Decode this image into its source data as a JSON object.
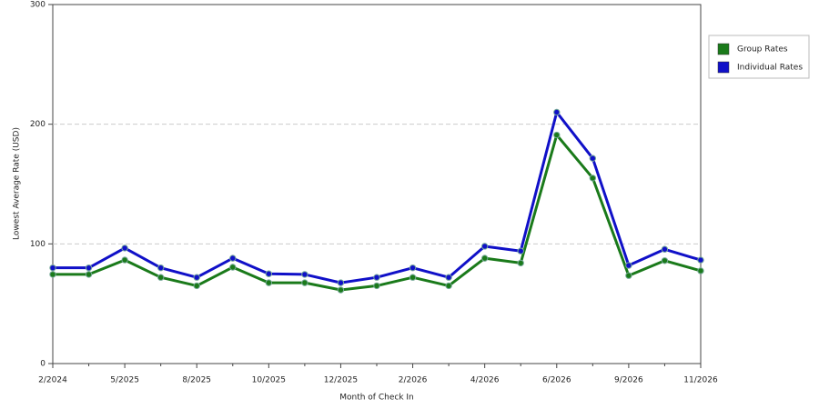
{
  "chart_data": {
    "type": "line",
    "x_label": "Month of Check In",
    "y_label": "Lowest Average Rate (USD)",
    "categories": [
      "2/2024",
      null,
      "5/2025",
      null,
      "8/2025",
      null,
      "10/2025",
      null,
      "12/2025",
      null,
      "2/2026",
      null,
      "4/2026",
      null,
      "6/2026",
      null,
      "9/2026",
      null,
      "11/2026"
    ],
    "series": [
      {
        "name": "Group Rates",
        "color": "#1a7a1a",
        "values": [
          74.5,
          74.5,
          86.5,
          72,
          65,
          80.5,
          67.5,
          67.5,
          61.5,
          65,
          72,
          65,
          88,
          84,
          191,
          155,
          73.5,
          86,
          77.5
        ]
      },
      {
        "name": "Individual Rates",
        "color": "#1010c8",
        "values": [
          80,
          80,
          96.5,
          80,
          72,
          88,
          75,
          74.5,
          67.5,
          72,
          80,
          72,
          98,
          94,
          210,
          171.5,
          82,
          95.5,
          86.5
        ]
      }
    ],
    "ylim": [
      0,
      300
    ],
    "yticks": [
      0,
      100,
      200,
      300
    ],
    "grid": true,
    "legend": "right"
  }
}
